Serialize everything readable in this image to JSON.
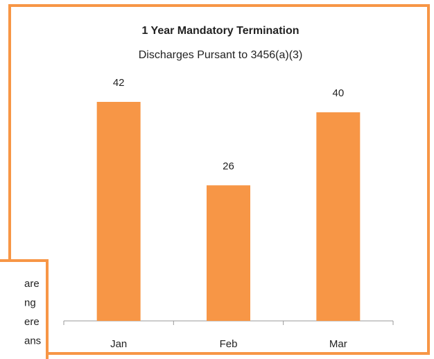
{
  "chart_data": {
    "type": "bar",
    "title": "1 Year Mandatory Termination",
    "subtitle": "Discharges Pursant to 3456(a)(3)",
    "categories": [
      "Jan",
      "Feb",
      "Mar"
    ],
    "values": [
      42,
      26,
      40
    ],
    "color": "#f79646"
  },
  "overlay_text": [
    "are",
    "ng",
    "ere",
    "ans"
  ]
}
